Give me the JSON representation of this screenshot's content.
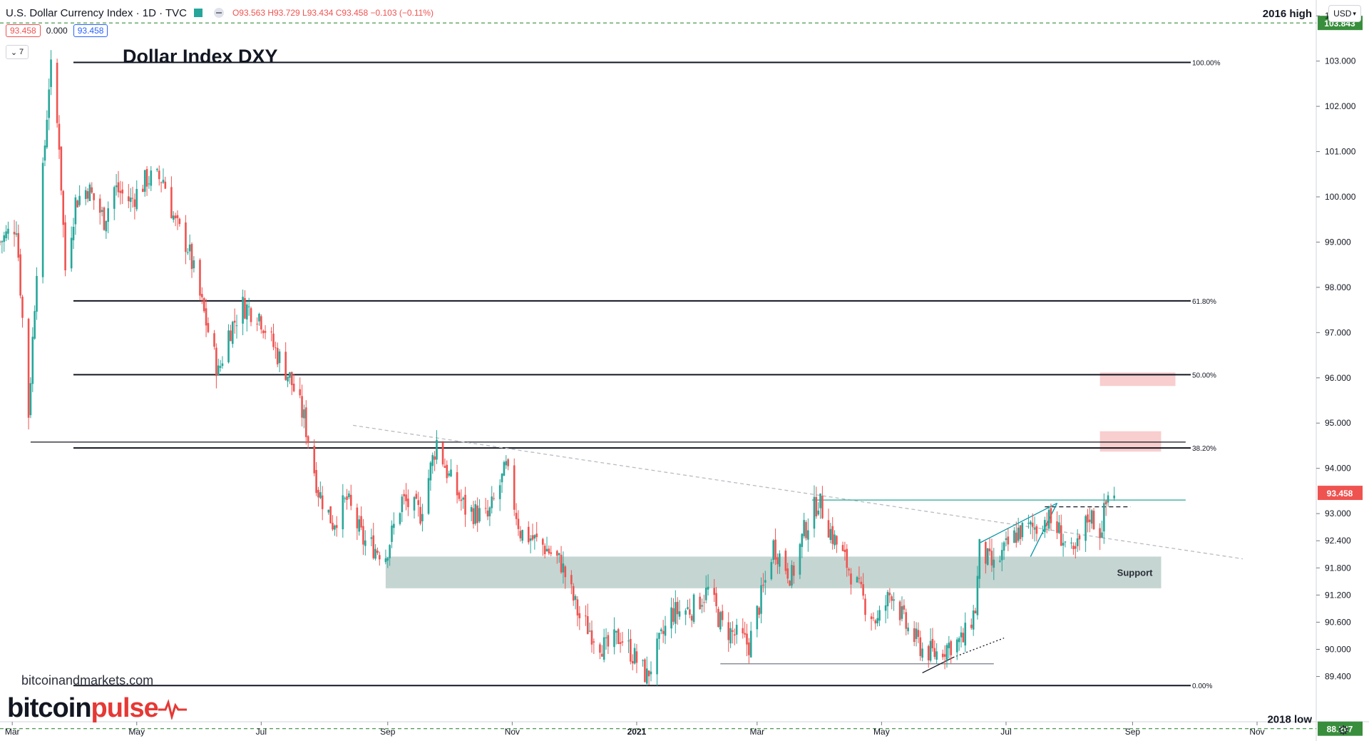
{
  "header": {
    "symbol": "U.S. Dollar Currency Index · 1D · TVC",
    "ohlc": "O93.563 H93.729 L93.434 C93.458 −0.103 (−0.11%)",
    "price_box_left": "93.458",
    "change_box": "0.000",
    "price_box_right": "93.458",
    "collapse_label": "7",
    "currency_button": "USD"
  },
  "chart_title": "Dollar Index DXY",
  "watermark": "bitcoinandmarkets.com",
  "logo": {
    "part1": "bitcoin",
    "part2": "pulse"
  },
  "colors": {
    "up": "#26a69a",
    "down": "#ef5350",
    "support_zone": "#b2c7c1",
    "resistance_zone": "#f7c6c5",
    "price_label": "#ef5350",
    "level_label": "#388e3c"
  },
  "chart_data": {
    "type": "candlestick",
    "x_range": [
      "2020-02-24",
      "2021-11-30"
    ],
    "ylim": [
      88.4,
      104.35
    ],
    "y_ticks": [
      "89.400",
      "90.000",
      "90.600",
      "91.200",
      "91.800",
      "92.400",
      "93.000",
      "94.000",
      "95.000",
      "96.000",
      "97.000",
      "98.000",
      "99.000",
      "100.000",
      "101.000",
      "102.000",
      "103.000",
      "104.000"
    ],
    "x_ticks": [
      {
        "label": "Mar",
        "date": "2020-03-01"
      },
      {
        "label": "May",
        "date": "2020-05-01"
      },
      {
        "label": "Jul",
        "date": "2020-07-01"
      },
      {
        "label": "Sep",
        "date": "2020-09-01"
      },
      {
        "label": "Nov",
        "date": "2020-11-01"
      },
      {
        "label": "2021",
        "date": "2021-01-01",
        "bold": true
      },
      {
        "label": "Mar",
        "date": "2021-03-01"
      },
      {
        "label": "May",
        "date": "2021-05-01"
      },
      {
        "label": "Jul",
        "date": "2021-07-01"
      },
      {
        "label": "Sep",
        "date": "2021-09-01"
      },
      {
        "label": "Nov",
        "date": "2021-11-01"
      }
    ],
    "close_path": [
      [
        "2020-02-24",
        99.0
      ],
      [
        "2020-03-03",
        99.4
      ],
      [
        "2020-03-09",
        95.2
      ],
      [
        "2020-03-13",
        98.5
      ],
      [
        "2020-03-19",
        102.5
      ],
      [
        "2020-03-20",
        102.8
      ],
      [
        "2020-03-24",
        101.2
      ],
      [
        "2020-03-27",
        98.4
      ],
      [
        "2020-04-01",
        99.9
      ],
      [
        "2020-04-07",
        100.2
      ],
      [
        "2020-04-15",
        99.5
      ],
      [
        "2020-04-20",
        100.2
      ],
      [
        "2020-04-28",
        99.9
      ],
      [
        "2020-05-06",
        100.4
      ],
      [
        "2020-05-14",
        100.4
      ],
      [
        "2020-05-20",
        99.4
      ],
      [
        "2020-05-26",
        98.9
      ],
      [
        "2020-06-02",
        97.6
      ],
      [
        "2020-06-10",
        96.1
      ],
      [
        "2020-06-15",
        97.0
      ],
      [
        "2020-06-22",
        97.6
      ],
      [
        "2020-06-30",
        97.4
      ],
      [
        "2020-07-08",
        96.6
      ],
      [
        "2020-07-15",
        96.0
      ],
      [
        "2020-07-22",
        95.1
      ],
      [
        "2020-07-29",
        93.5
      ],
      [
        "2020-08-05",
        92.8
      ],
      [
        "2020-08-12",
        93.3
      ],
      [
        "2020-08-20",
        92.4
      ],
      [
        "2020-08-31",
        92.1
      ],
      [
        "2020-09-08",
        93.3
      ],
      [
        "2020-09-17",
        93.0
      ],
      [
        "2020-09-25",
        94.6
      ],
      [
        "2020-10-01",
        93.8
      ],
      [
        "2020-10-09",
        93.1
      ],
      [
        "2020-10-20",
        92.9
      ],
      [
        "2020-10-29",
        94.0
      ],
      [
        "2020-11-05",
        92.6
      ],
      [
        "2020-11-16",
        92.3
      ],
      [
        "2020-11-25",
        91.9
      ],
      [
        "2020-12-04",
        90.7
      ],
      [
        "2020-12-17",
        90.0
      ],
      [
        "2020-12-24",
        90.3
      ],
      [
        "2021-01-06",
        89.4
      ],
      [
        "2021-01-18",
        90.8
      ],
      [
        "2021-01-28",
        90.9
      ],
      [
        "2021-02-05",
        91.3
      ],
      [
        "2021-02-12",
        90.5
      ],
      [
        "2021-02-25",
        90.1
      ],
      [
        "2021-03-05",
        91.5
      ],
      [
        "2021-03-09",
        92.3
      ],
      [
        "2021-03-18",
        91.6
      ],
      [
        "2021-03-24",
        92.6
      ],
      [
        "2021-03-31",
        93.3
      ],
      [
        "2021-04-07",
        92.5
      ],
      [
        "2021-04-16",
        91.7
      ],
      [
        "2021-04-23",
        91.0
      ],
      [
        "2021-04-29",
        90.6
      ],
      [
        "2021-05-06",
        91.3
      ],
      [
        "2021-05-13",
        90.5
      ],
      [
        "2021-05-21",
        90.0
      ],
      [
        "2021-05-27",
        89.9
      ],
      [
        "2021-06-03",
        90.1
      ],
      [
        "2021-06-10",
        90.2
      ],
      [
        "2021-06-16",
        90.9
      ],
      [
        "2021-06-18",
        92.2
      ],
      [
        "2021-06-25",
        91.8
      ],
      [
        "2021-07-02",
        92.3
      ],
      [
        "2021-07-07",
        92.6
      ],
      [
        "2021-07-16",
        92.7
      ],
      [
        "2021-07-21",
        92.9
      ],
      [
        "2021-07-27",
        92.6
      ],
      [
        "2021-08-03",
        92.0
      ],
      [
        "2021-08-11",
        93.0
      ],
      [
        "2021-08-16",
        92.6
      ],
      [
        "2021-08-20",
        93.4
      ],
      [
        "2021-08-23",
        93.5
      ]
    ],
    "fib_levels": [
      {
        "label": "100.00%",
        "value": 102.97
      },
      {
        "label": "61.80%",
        "value": 97.7
      },
      {
        "label": "50.00%",
        "value": 96.07
      },
      {
        "label": "38.20%",
        "value": 94.45
      },
      {
        "label": "0.00%",
        "value": 89.2
      }
    ],
    "horizontal_levels": [
      {
        "label": "2016 high",
        "value": 103.843
      },
      {
        "label": "2018 low",
        "value": 88.247
      }
    ],
    "last_price": 93.458,
    "support_zone": {
      "label": "Support",
      "x0": "2020-08-31",
      "x1": "2021-09-15",
      "y0": 91.35,
      "y1": 92.05
    },
    "resistance_zones": [
      {
        "x0": "2021-08-16",
        "x1": "2021-09-15",
        "y0": 94.37,
        "y1": 94.82
      },
      {
        "x0": "2021-08-16",
        "x1": "2021-09-22",
        "y0": 95.82,
        "y1": 96.12
      }
    ],
    "trend_lines": [
      {
        "kind": "solid",
        "color": "#131722",
        "from": [
          "2020-03-10",
          94.58
        ],
        "to": [
          "2021-09-27",
          94.58
        ]
      },
      {
        "kind": "dashed-grey",
        "color": "#b8bbc2",
        "from": [
          "2020-08-15",
          94.95
        ],
        "to": [
          "2021-10-25",
          92.0
        ]
      },
      {
        "kind": "solid",
        "color": "#26a69a",
        "from": [
          "2021-03-28",
          93.3
        ],
        "to": [
          "2021-09-27",
          93.3
        ]
      },
      {
        "kind": "dashed",
        "color": "#131722",
        "from": [
          "2021-07-20",
          93.15
        ],
        "to": [
          "2021-08-31",
          93.15
        ]
      },
      {
        "kind": "solid",
        "color": "#787b86",
        "from": [
          "2021-02-11",
          89.68
        ],
        "to": [
          "2021-06-25",
          89.68
        ]
      },
      {
        "kind": "solid",
        "color": "#131722",
        "from": [
          "2021-05-21",
          89.48
        ],
        "to": [
          "2021-06-05",
          89.82
        ]
      },
      {
        "kind": "dotted",
        "color": "#131722",
        "from": [
          "2021-06-05",
          89.82
        ],
        "to": [
          "2021-06-30",
          90.25
        ]
      },
      {
        "kind": "solid",
        "color": "#0097a7",
        "from": [
          "2021-06-18",
          92.35
        ],
        "to": [
          "2021-07-26",
          93.23
        ]
      },
      {
        "kind": "solid",
        "color": "#0097a7",
        "from": [
          "2021-07-13",
          92.05
        ],
        "to": [
          "2021-07-26",
          93.23
        ]
      }
    ]
  }
}
